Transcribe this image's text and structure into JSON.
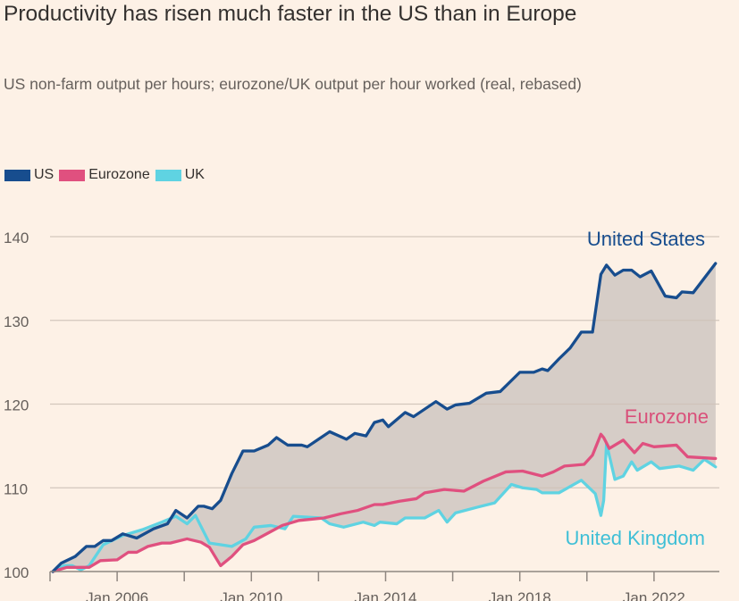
{
  "title": "Productivity has risen much faster in the US than in Europe",
  "subtitle": "US non-farm output per hours; eurozone/UK output per hour worked (real, rebased)",
  "colors": {
    "background": "#fdf1e6",
    "US": "#174d8e",
    "Eurozone": "#e0507f",
    "UK": "#5fd3e2",
    "gap_fill": "#d6cdc7"
  },
  "chart_data": {
    "type": "line",
    "title": "Productivity has risen much faster in the US than in Europe",
    "subtitle": "US non-farm output per hours; eurozone/UK output per hour worked (real, rebased)",
    "xlabel": "",
    "ylabel": "",
    "ylim": [
      100,
      141
    ],
    "xlim": [
      "2004-01",
      "2023-12"
    ],
    "yticks": [
      "100",
      "110",
      "120",
      "130",
      "140"
    ],
    "xticks": [
      "Jan 2006",
      "Jan 2010",
      "Jan 2014",
      "Jan 2018",
      "Jan 2022"
    ],
    "grid": "horizontal",
    "legend": "top-left",
    "legend_entries": [
      "US",
      "Eurozone",
      "UK"
    ],
    "shading": "gap between US and the European series",
    "annotations": [
      "United States",
      "Eurozone",
      "United Kingdom"
    ],
    "series": [
      {
        "name": "US",
        "points": [
          [
            "2004-02",
            100
          ],
          [
            "2004-05",
            101
          ],
          [
            "2004-10",
            101.8
          ],
          [
            "2005-02",
            103
          ],
          [
            "2005-05",
            103
          ],
          [
            "2005-08",
            103.7
          ],
          [
            "2005-11",
            103.7
          ],
          [
            "2006-03",
            104.5
          ],
          [
            "2006-08",
            104
          ],
          [
            "2007-02",
            105.1
          ],
          [
            "2007-07",
            105.7
          ],
          [
            "2007-10",
            107.3
          ],
          [
            "2008-02",
            106.4
          ],
          [
            "2008-06",
            107.8
          ],
          [
            "2008-08",
            107.8
          ],
          [
            "2008-11",
            107.5
          ],
          [
            "2009-02",
            108.5
          ],
          [
            "2009-06",
            111.7
          ],
          [
            "2009-10",
            114.4
          ],
          [
            "2010-02",
            114.4
          ],
          [
            "2010-07",
            115.1
          ],
          [
            "2010-10",
            116
          ],
          [
            "2011-02",
            115.1
          ],
          [
            "2011-07",
            115.1
          ],
          [
            "2011-09",
            114.9
          ],
          [
            "2012-01",
            115.8
          ],
          [
            "2012-05",
            116.7
          ],
          [
            "2012-11",
            115.8
          ],
          [
            "2013-02",
            116.5
          ],
          [
            "2013-06",
            116.2
          ],
          [
            "2013-09",
            117.8
          ],
          [
            "2013-12",
            118.1
          ],
          [
            "2014-02",
            117.3
          ],
          [
            "2014-08",
            119
          ],
          [
            "2014-11",
            118.5
          ],
          [
            "2015-07",
            120.3
          ],
          [
            "2015-11",
            119.4
          ],
          [
            "2016-02",
            119.9
          ],
          [
            "2016-07",
            120.1
          ],
          [
            "2017-01",
            121.3
          ],
          [
            "2017-06",
            121.5
          ],
          [
            "2018-01",
            123.8
          ],
          [
            "2018-06",
            123.8
          ],
          [
            "2018-09",
            124.2
          ],
          [
            "2018-11",
            124
          ],
          [
            "2019-03",
            125.4
          ],
          [
            "2019-07",
            126.7
          ],
          [
            "2019-11",
            128.6
          ],
          [
            "2020-03",
            128.6
          ],
          [
            "2020-06",
            135.5
          ],
          [
            "2020-08",
            136.6
          ],
          [
            "2020-11",
            135.4
          ],
          [
            "2021-02",
            136
          ],
          [
            "2021-05",
            136
          ],
          [
            "2021-08",
            135.2
          ],
          [
            "2021-12",
            135.9
          ],
          [
            "2022-05",
            132.9
          ],
          [
            "2022-09",
            132.7
          ],
          [
            "2022-11",
            133.4
          ],
          [
            "2023-03",
            133.3
          ],
          [
            "2023-11",
            136.8
          ]
        ]
      },
      {
        "name": "Eurozone",
        "points": [
          [
            "2004-02",
            100
          ],
          [
            "2004-07",
            100.5
          ],
          [
            "2005-03",
            100.5
          ],
          [
            "2005-07",
            101.3
          ],
          [
            "2006-01",
            101.4
          ],
          [
            "2006-05",
            102.3
          ],
          [
            "2006-08",
            102.3
          ],
          [
            "2006-12",
            103
          ],
          [
            "2007-05",
            103.4
          ],
          [
            "2007-08",
            103.4
          ],
          [
            "2008-02",
            103.9
          ],
          [
            "2008-07",
            103.5
          ],
          [
            "2008-10",
            102.9
          ],
          [
            "2009-02",
            100.7
          ],
          [
            "2009-06",
            101.8
          ],
          [
            "2009-10",
            103.2
          ],
          [
            "2010-02",
            103.7
          ],
          [
            "2010-07",
            104.6
          ],
          [
            "2010-12",
            105.5
          ],
          [
            "2011-06",
            106.1
          ],
          [
            "2012-03",
            106.4
          ],
          [
            "2012-09",
            106.9
          ],
          [
            "2013-03",
            107.3
          ],
          [
            "2013-09",
            108
          ],
          [
            "2013-12",
            108
          ],
          [
            "2014-06",
            108.4
          ],
          [
            "2014-12",
            108.7
          ],
          [
            "2015-03",
            109.4
          ],
          [
            "2015-10",
            109.8
          ],
          [
            "2016-05",
            109.6
          ],
          [
            "2016-12",
            110.8
          ],
          [
            "2017-08",
            111.9
          ],
          [
            "2018-02",
            112
          ],
          [
            "2018-09",
            111.4
          ],
          [
            "2019-01",
            111.9
          ],
          [
            "2019-05",
            112.6
          ],
          [
            "2019-12",
            112.8
          ],
          [
            "2020-03",
            113.9
          ],
          [
            "2020-06",
            116.4
          ],
          [
            "2020-07",
            116
          ],
          [
            "2020-09",
            114.7
          ],
          [
            "2021-02",
            115.7
          ],
          [
            "2021-06",
            114.2
          ],
          [
            "2021-09",
            115.3
          ],
          [
            "2022-01",
            114.9
          ],
          [
            "2022-09",
            115.1
          ],
          [
            "2023-01",
            113.7
          ],
          [
            "2023-11",
            113.5
          ]
        ]
      },
      {
        "name": "UK",
        "points": [
          [
            "2004-02",
            100
          ],
          [
            "2004-06",
            100.7
          ],
          [
            "2004-09",
            100.7
          ],
          [
            "2004-12",
            100.2
          ],
          [
            "2005-03",
            100.7
          ],
          [
            "2005-08",
            103.2
          ],
          [
            "2006-03",
            104.3
          ],
          [
            "2006-10",
            105
          ],
          [
            "2007-05",
            105.9
          ],
          [
            "2007-10",
            106.6
          ],
          [
            "2008-02",
            105.7
          ],
          [
            "2008-05",
            106.7
          ],
          [
            "2008-10",
            103.4
          ],
          [
            "2009-06",
            103
          ],
          [
            "2009-11",
            103.9
          ],
          [
            "2010-02",
            105.3
          ],
          [
            "2010-08",
            105.5
          ],
          [
            "2011-01",
            105.1
          ],
          [
            "2011-04",
            106.6
          ],
          [
            "2012-02",
            106.4
          ],
          [
            "2012-05",
            105.7
          ],
          [
            "2012-10",
            105.3
          ],
          [
            "2013-05",
            105.9
          ],
          [
            "2013-09",
            105.5
          ],
          [
            "2013-11",
            105.9
          ],
          [
            "2014-05",
            105.7
          ],
          [
            "2014-08",
            106.4
          ],
          [
            "2015-03",
            106.4
          ],
          [
            "2015-08",
            107.3
          ],
          [
            "2015-11",
            105.9
          ],
          [
            "2016-02",
            107
          ],
          [
            "2016-10",
            107.7
          ],
          [
            "2017-04",
            108.2
          ],
          [
            "2017-10",
            110.4
          ],
          [
            "2018-02",
            110
          ],
          [
            "2018-07",
            109.8
          ],
          [
            "2018-09",
            109.4
          ],
          [
            "2019-03",
            109.4
          ],
          [
            "2019-11",
            110.9
          ],
          [
            "2020-04",
            109.3
          ],
          [
            "2020-06",
            106.7
          ],
          [
            "2020-07",
            108.5
          ],
          [
            "2020-08",
            115.3
          ],
          [
            "2020-11",
            111
          ],
          [
            "2021-02",
            111.4
          ],
          [
            "2021-05",
            113.1
          ],
          [
            "2021-07",
            112.1
          ],
          [
            "2021-12",
            113.1
          ],
          [
            "2022-03",
            112.3
          ],
          [
            "2022-10",
            112.6
          ],
          [
            "2023-03",
            112.1
          ],
          [
            "2023-07",
            113.4
          ],
          [
            "2023-11",
            112.5
          ]
        ]
      }
    ]
  }
}
